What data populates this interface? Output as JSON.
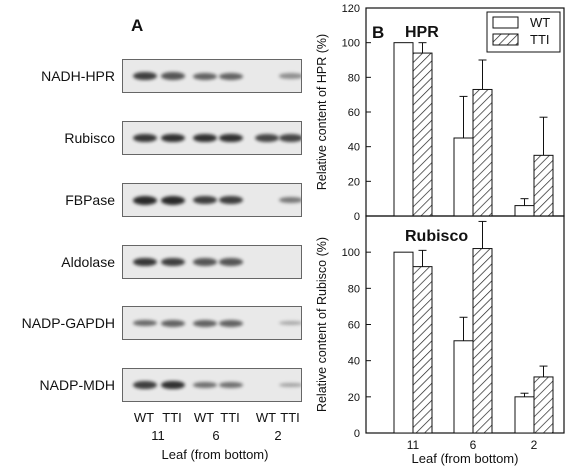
{
  "panel_a": {
    "letter": "A",
    "blots": [
      {
        "label": "NADH-HPR",
        "intensity": [
          0.85,
          0.7,
          0.6,
          0.6,
          0.0,
          0.3
        ]
      },
      {
        "label": "Rubisco",
        "intensity": [
          0.9,
          0.95,
          0.95,
          0.95,
          0.8,
          0.8
        ]
      },
      {
        "label": "FBPase",
        "intensity": [
          1.0,
          1.0,
          0.85,
          0.85,
          0.0,
          0.45
        ]
      },
      {
        "label": "Aldolase",
        "intensity": [
          0.9,
          0.85,
          0.7,
          0.7,
          0.0,
          0.0
        ]
      },
      {
        "label": "NADP-GAPDH",
        "intensity": [
          0.55,
          0.6,
          0.6,
          0.6,
          0.0,
          0.1
        ]
      },
      {
        "label": "NADP-MDH",
        "intensity": [
          0.85,
          0.95,
          0.5,
          0.5,
          0.0,
          0.15
        ]
      }
    ],
    "lanes": [
      "WT",
      "TTI",
      "WT",
      "TTI",
      "WT",
      "TTI"
    ],
    "leaves": [
      "11",
      "6",
      "2"
    ],
    "xlabel": "Leaf (from bottom)"
  },
  "chart_data": [
    {
      "type": "bar",
      "panel": "B",
      "title": "HPR",
      "categories": [
        "11",
        "6",
        "2"
      ],
      "series": [
        {
          "name": "WT",
          "values": [
            100,
            45,
            6
          ],
          "errors": [
            0,
            24,
            4
          ]
        },
        {
          "name": "TTI",
          "values": [
            94,
            73,
            35
          ],
          "errors": [
            6,
            17,
            22
          ]
        }
      ],
      "ylabel": "Relative content of HPR (%)",
      "ylim": [
        0,
        120
      ],
      "yticks": [
        0,
        20,
        40,
        60,
        80,
        100,
        120
      ],
      "legend": "top-right",
      "pattern": {
        "WT": "open",
        "TTI": "hatched"
      }
    },
    {
      "type": "bar",
      "title": "Rubisco",
      "categories": [
        "11",
        "6",
        "2"
      ],
      "series": [
        {
          "name": "WT",
          "values": [
            100,
            51,
            20
          ],
          "errors": [
            0,
            13,
            2
          ]
        },
        {
          "name": "TTI",
          "values": [
            92,
            102,
            31
          ],
          "errors": [
            9,
            15,
            6
          ]
        }
      ],
      "ylabel": "Relative content of Rubisco (%)",
      "ylim": [
        0,
        120
      ],
      "yticks": [
        0,
        20,
        40,
        60,
        80,
        100
      ],
      "xlabel": "Leaf (from bottom)",
      "pattern": {
        "WT": "open",
        "TTI": "hatched"
      }
    }
  ],
  "panel_b_letter": "B"
}
